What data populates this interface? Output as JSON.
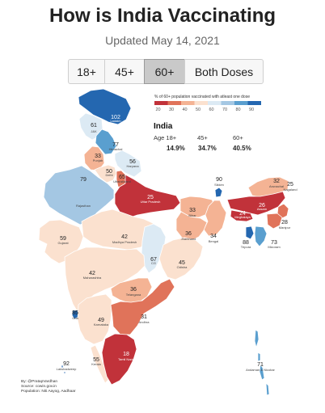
{
  "header": {
    "title": "How is India Vaccinating",
    "subtitle": "Updated May 14, 2021"
  },
  "tabs": [
    {
      "label": "18+",
      "active": false
    },
    {
      "label": "45+",
      "active": false
    },
    {
      "label": "60+",
      "active": true
    },
    {
      "label": "Both Doses",
      "active": false
    }
  ],
  "legend": {
    "title": "% of 60+ population vaccinated with atleast one dose",
    "ticks": [
      "20",
      "30",
      "40",
      "50",
      "60",
      "70",
      "80",
      "90"
    ],
    "colors": [
      "#c1323a",
      "#e0735a",
      "#f4b394",
      "#fbe1cf",
      "#dceaf4",
      "#a4c7e3",
      "#5a9fcf",
      "#2467b0"
    ]
  },
  "summary": {
    "title": "India",
    "labels": [
      "Age 18+",
      "45+",
      "60+"
    ],
    "values": [
      "14.9%",
      "34.7%",
      "40.5%"
    ]
  },
  "regions": [
    {
      "name": "Ladakh",
      "value": "102",
      "color": "#2467b0"
    },
    {
      "name": "J&K",
      "value": "61",
      "color": "#dceaf4"
    },
    {
      "name": "Himachal",
      "value": "77",
      "color": "#5a9fcf"
    },
    {
      "name": "Punjab",
      "value": "33",
      "color": "#f4b394"
    },
    {
      "name": "Haryana",
      "value": "56",
      "color": "#fbe1cf"
    },
    {
      "name": "Delhi",
      "value": "50",
      "color": "#e0735a"
    },
    {
      "name": "Uttarakhand",
      "value": "65",
      "color": "#dceaf4"
    },
    {
      "name": "Rajasthan",
      "value": "79",
      "color": "#a4c7e3"
    },
    {
      "name": "Uttar Pradesh",
      "value": "25",
      "color": "#c1323a"
    },
    {
      "name": "Bihar",
      "value": "33",
      "color": "#f4b394"
    },
    {
      "name": "Sikkim",
      "value": "90",
      "color": "#2467b0"
    },
    {
      "name": "Arunachal",
      "value": "32",
      "color": "#f4b394"
    },
    {
      "name": "Nagaland",
      "value": "25",
      "color": "#e0735a"
    },
    {
      "name": "Assam",
      "value": "26",
      "color": "#c1323a"
    },
    {
      "name": "Meghalaya",
      "value": "24",
      "color": "#c1323a"
    },
    {
      "name": "Manipur",
      "value": "28",
      "color": "#e0735a"
    },
    {
      "name": "Tripura",
      "value": "88",
      "color": "#2467b0"
    },
    {
      "name": "Mizoram",
      "value": "73",
      "color": "#5a9fcf"
    },
    {
      "name": "Jharkhand",
      "value": "36",
      "color": "#f4b394"
    },
    {
      "name": "Bengal",
      "value": "34",
      "color": "#f4b394"
    },
    {
      "name": "Gujarat",
      "value": "59",
      "color": "#fbe1cf"
    },
    {
      "name": "Madhya Pradesh",
      "value": "42",
      "color": "#fbe1cf"
    },
    {
      "name": "CG",
      "value": "67",
      "color": "#dceaf4"
    },
    {
      "name": "Odisha",
      "value": "45",
      "color": "#fbe1cf"
    },
    {
      "name": "Maharashtra",
      "value": "42",
      "color": "#fbe1cf"
    },
    {
      "name": "Telangana",
      "value": "36",
      "color": "#f4b394"
    },
    {
      "name": "Goa",
      "value": "85",
      "color": "#2467b0"
    },
    {
      "name": "Karnataka",
      "value": "49",
      "color": "#fbe1cf"
    },
    {
      "name": "Andhra",
      "value": "31",
      "color": "#e0735a"
    },
    {
      "name": "Tamil Nadu",
      "value": "18",
      "color": "#c1323a"
    },
    {
      "name": "Kerala",
      "value": "55",
      "color": "#fbe1cf"
    },
    {
      "name": "Lakshadweep",
      "value": "92",
      "color": "#2467b0"
    },
    {
      "name": "Andaman & Nicobar",
      "value": "71",
      "color": "#5a9fcf"
    }
  ],
  "credits": [
    "By: @PratapVardhan",
    "Source: cowin.gov.in",
    "Population: Niti Aayog, Aadhaar"
  ]
}
